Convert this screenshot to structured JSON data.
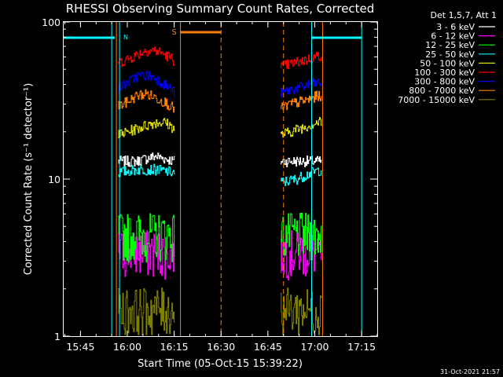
{
  "chart_data": {
    "type": "line",
    "title": "RHESSI Observing Summary Count Rates, Corrected",
    "xlabel": "Start Time (05-Oct-15 15:39:22)",
    "ylabel": "Corrected Count Rate (s⁻¹ detector⁻¹)",
    "yscale": "log",
    "ylim": [
      1,
      100
    ],
    "xlim": [
      "15:39:22",
      "17:20:00"
    ],
    "x_tick_labels": [
      "15:45",
      "16:00",
      "16:15",
      "16:30",
      "16:45",
      "17:00",
      "17:15"
    ],
    "y_tick_labels": [
      "1",
      "10",
      "100"
    ],
    "legend_title": "Det 1,5,7, Att 1",
    "legend_position": "right",
    "grid": false,
    "timestamp": "31-Oct-2021 21:57",
    "series": [
      {
        "name": "3 - 6 keV",
        "color": "#ffffff",
        "times": [
          "15:57",
          "16:03",
          "16:09",
          "16:15",
          "16:49",
          "16:54",
          "16:59",
          "17:02"
        ],
        "values": [
          13,
          13,
          14,
          13,
          13,
          13,
          13,
          13
        ]
      },
      {
        "name": "6 - 12 keV",
        "color": "#ff00ff",
        "times": [
          "15:57",
          "16:03",
          "16:09",
          "16:15",
          "16:49",
          "16:54",
          "16:59",
          "17:02"
        ],
        "values": [
          3.5,
          3.5,
          3.5,
          3.5,
          3.5,
          3.5,
          3.5,
          3.5
        ]
      },
      {
        "name": "12 - 25 keV",
        "color": "#00ff00",
        "times": [
          "15:57",
          "16:03",
          "16:09",
          "16:15",
          "16:49",
          "16:54",
          "16:59",
          "17:02"
        ],
        "values": [
          4.5,
          4.5,
          4.5,
          4.5,
          4.5,
          4.5,
          4.5,
          4.5
        ]
      },
      {
        "name": "25 - 50 keV",
        "color": "#00ffff",
        "times": [
          "15:57",
          "16:03",
          "16:09",
          "16:15",
          "16:49",
          "16:54",
          "16:59",
          "17:02"
        ],
        "values": [
          11,
          11.5,
          11.5,
          11,
          9.5,
          10,
          11,
          11.5
        ]
      },
      {
        "name": "50 - 100 keV",
        "color": "#e0e000",
        "times": [
          "15:57",
          "16:00",
          "16:03",
          "16:06",
          "16:09",
          "16:12",
          "16:15",
          "16:49",
          "16:52",
          "16:55",
          "16:58",
          "17:01",
          "17:02"
        ],
        "values": [
          19,
          20,
          21,
          22,
          23,
          23,
          21,
          19,
          20,
          21,
          22,
          23,
          23
        ]
      },
      {
        "name": "100 - 300 keV",
        "color": "#ff0000",
        "times": [
          "15:57",
          "16:00",
          "16:03",
          "16:06",
          "16:09",
          "16:12",
          "16:15",
          "16:49",
          "16:52",
          "16:55",
          "16:58",
          "17:01",
          "17:02"
        ],
        "values": [
          55,
          58,
          62,
          66,
          66,
          62,
          57,
          52,
          54,
          56,
          58,
          61,
          61
        ]
      },
      {
        "name": "300 - 800 keV",
        "color": "#0000ff",
        "times": [
          "15:57",
          "16:00",
          "16:03",
          "16:06",
          "16:09",
          "16:12",
          "16:15",
          "16:49",
          "16:52",
          "16:55",
          "16:58",
          "17:01",
          "17:02"
        ],
        "values": [
          38,
          41,
          45,
          46,
          44,
          40,
          36,
          35,
          37,
          38,
          40,
          41,
          41
        ]
      },
      {
        "name": "800 - 7000 keV",
        "color": "#ff7f00",
        "times": [
          "15:57",
          "16:00",
          "16:03",
          "16:06",
          "16:09",
          "16:12",
          "16:15",
          "16:49",
          "16:52",
          "16:55",
          "16:58",
          "17:01",
          "17:02"
        ],
        "values": [
          29,
          31,
          34,
          35,
          33,
          31,
          28,
          28,
          30,
          31,
          32,
          34,
          34
        ]
      },
      {
        "name": "7000 - 15000 keV",
        "color": "#808000",
        "times": [
          "15:57",
          "16:03",
          "16:09",
          "16:15",
          "16:49",
          "16:54",
          "16:59",
          "17:02"
        ],
        "values": [
          1.5,
          1.5,
          1.5,
          1.5,
          1.5,
          1.5,
          1.5,
          1.5
        ]
      }
    ],
    "markers": {
      "night_label": "N",
      "saa_label": "S",
      "night_color": "#00ffff",
      "saa_color": "#ff7f00",
      "night_bars": [
        [
          "15:39:22",
          "15:56:00"
        ],
        [
          "16:59:00",
          "17:15:00"
        ]
      ],
      "saa_bar": [
        "16:17:00",
        "16:30:00"
      ],
      "night_lines": [
        "15:55:00",
        "15:57:30",
        "16:59:00",
        "17:15:00"
      ],
      "saa_lines_solid": [
        "15:56:30",
        "16:17:00",
        "17:02:30"
      ],
      "saa_lines_dashed": [
        "16:30:00",
        "16:50:00"
      ]
    }
  }
}
